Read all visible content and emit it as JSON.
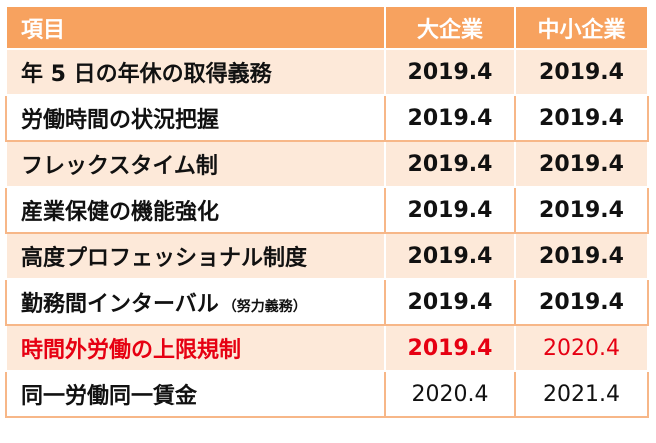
{
  "header": {
    "item": "項目",
    "large": "大企業",
    "small": "中小企業"
  },
  "colors": {
    "header_bg": "#f7a25f",
    "row_stripe": "#fde9d9",
    "highlight_red": "#e60012"
  },
  "rows": [
    {
      "item": "年 5 日の年休の取得義務",
      "note": "",
      "large": "2019.4",
      "small": "2019.4",
      "large_style": "bold",
      "small_style": "bold",
      "item_red": false,
      "large_red": false,
      "small_red": false
    },
    {
      "item": "労働時間の状況把握",
      "note": "",
      "large": "2019.4",
      "small": "2019.4",
      "large_style": "bold",
      "small_style": "bold",
      "item_red": false,
      "large_red": false,
      "small_red": false
    },
    {
      "item": "フレックスタイム制",
      "note": "",
      "large": "2019.4",
      "small": "2019.4",
      "large_style": "bold",
      "small_style": "bold",
      "item_red": false,
      "large_red": false,
      "small_red": false
    },
    {
      "item": "産業保健の機能強化",
      "note": "",
      "large": "2019.4",
      "small": "2019.4",
      "large_style": "bold",
      "small_style": "bold",
      "item_red": false,
      "large_red": false,
      "small_red": false
    },
    {
      "item": "高度プロフェッショナル制度",
      "note": "",
      "large": "2019.4",
      "small": "2019.4",
      "large_style": "bold",
      "small_style": "bold",
      "item_red": false,
      "large_red": false,
      "small_red": false
    },
    {
      "item": "勤務間インターバル",
      "note": "（努力義務）",
      "large": "2019.4",
      "small": "2019.4",
      "large_style": "bold",
      "small_style": "bold",
      "item_red": false,
      "large_red": false,
      "small_red": false
    },
    {
      "item": "時間外労働の上限規制",
      "note": "",
      "large": "2019.4",
      "small": "2020.4",
      "large_style": "bold",
      "small_style": "normal",
      "item_red": true,
      "large_red": true,
      "small_red": true
    },
    {
      "item": "同一労働同一賃金",
      "note": "",
      "large": "2020.4",
      "small": "2021.4",
      "large_style": "normal",
      "small_style": "normal",
      "item_red": false,
      "large_red": false,
      "small_red": false
    }
  ]
}
